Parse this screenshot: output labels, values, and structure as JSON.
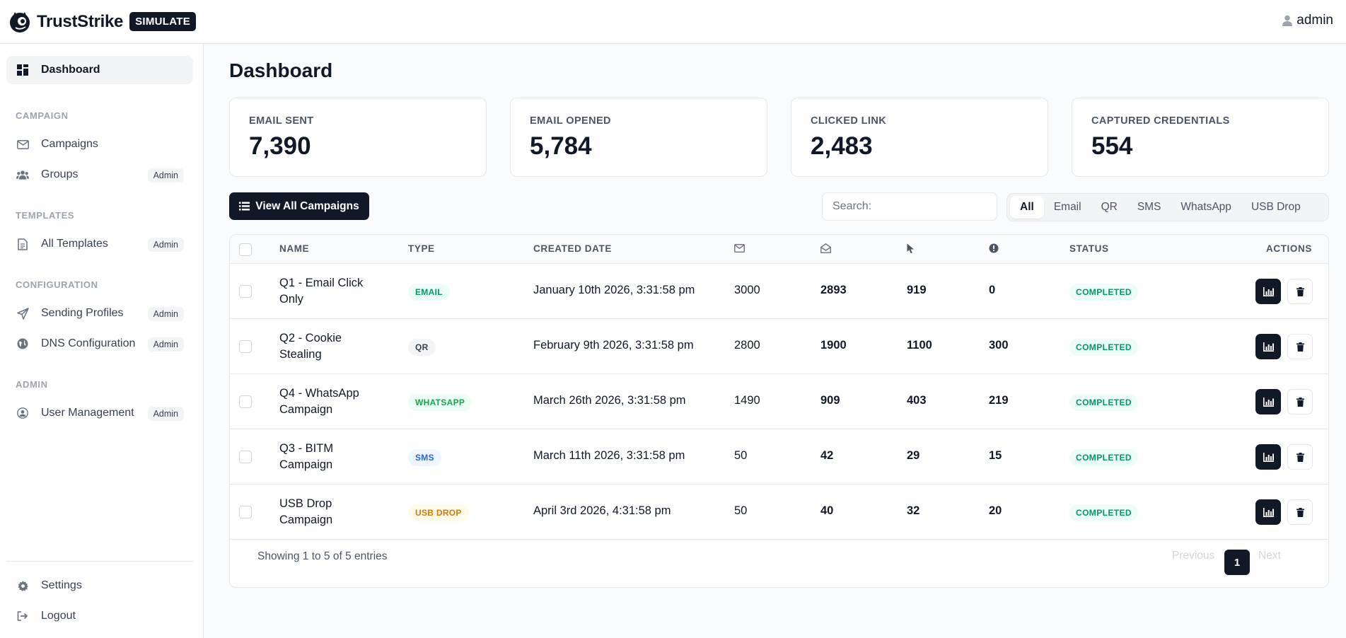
{
  "brand": {
    "name": "TrustStrike",
    "tag": "SIMULATE"
  },
  "user": {
    "name": "admin"
  },
  "sidebar": {
    "dashboard": "Dashboard",
    "sections": {
      "campaign": "CAMPAIGN",
      "templates": "TEMPLATES",
      "configuration": "CONFIGURATION",
      "admin": "ADMIN"
    },
    "items": {
      "campaigns": "Campaigns",
      "groups": "Groups",
      "all_templates": "All Templates",
      "sending_profiles": "Sending Profiles",
      "dns_configuration": "DNS Configuration",
      "user_management": "User Management",
      "settings": "Settings",
      "logout": "Logout"
    },
    "admin_badge": "Admin"
  },
  "page": {
    "title": "Dashboard"
  },
  "stats": [
    {
      "label": "EMAIL SENT",
      "value": "7,390"
    },
    {
      "label": "EMAIL OPENED",
      "value": "5,784"
    },
    {
      "label": "CLICKED LINK",
      "value": "2,483"
    },
    {
      "label": "CAPTURED CREDENTIALS",
      "value": "554"
    }
  ],
  "toolbar": {
    "view_all": "View All Campaigns",
    "search_placeholder": "Search:",
    "filters": [
      "All",
      "Email",
      "QR",
      "SMS",
      "WhatsApp",
      "USB Drop"
    ],
    "active_filter": "All"
  },
  "table": {
    "headers": {
      "name": "NAME",
      "type": "TYPE",
      "created": "CREATED DATE",
      "status": "STATUS",
      "actions": "ACTIONS"
    },
    "header_icons": [
      "envelope-icon",
      "envelope-open-icon",
      "cursor-icon",
      "alert-circle-icon"
    ],
    "rows": [
      {
        "name": "Q1 - Email Click Only",
        "type": "EMAIL",
        "date": "January 10th 2026, 3:31:58 pm",
        "sent": "3000",
        "opened": "2893",
        "clicked": "919",
        "submitted": "0",
        "status": "COMPLETED"
      },
      {
        "name": "Q2 - Cookie Stealing",
        "type": "QR",
        "date": "February 9th 2026, 3:31:58 pm",
        "sent": "2800",
        "opened": "1900",
        "clicked": "1100",
        "submitted": "300",
        "status": "COMPLETED"
      },
      {
        "name": "Q4 - WhatsApp Campaign",
        "type": "WHATSAPP",
        "date": "March 26th 2026, 3:31:58 pm",
        "sent": "1490",
        "opened": "909",
        "clicked": "403",
        "submitted": "219",
        "status": "COMPLETED"
      },
      {
        "name": "Q3 - BITM Campaign",
        "type": "SMS",
        "date": "March 11th 2026, 3:31:58 pm",
        "sent": "50",
        "opened": "42",
        "clicked": "29",
        "submitted": "15",
        "status": "COMPLETED"
      },
      {
        "name": "USB Drop Campaign",
        "type": "USB DROP",
        "date": "April 3rd 2026, 4:31:58 pm",
        "sent": "50",
        "opened": "40",
        "clicked": "32",
        "submitted": "20",
        "status": "COMPLETED"
      }
    ],
    "footer": "Showing 1 to 5 of 5 entries",
    "pagination": {
      "previous": "Previous",
      "current": "1",
      "next": "Next"
    }
  },
  "colors": {
    "dark": "#111827",
    "email_badge": "#ecfdf5",
    "email_text": "#059669",
    "qr_badge": "#f3f4f6",
    "qr_text": "#374151",
    "whatsapp_badge": "#ecfdf5",
    "whatsapp_text": "#16a34a",
    "sms_badge": "#eff6ff",
    "sms_text": "#2563eb",
    "usb_badge": "#fffbeb",
    "usb_text": "#d97706"
  }
}
